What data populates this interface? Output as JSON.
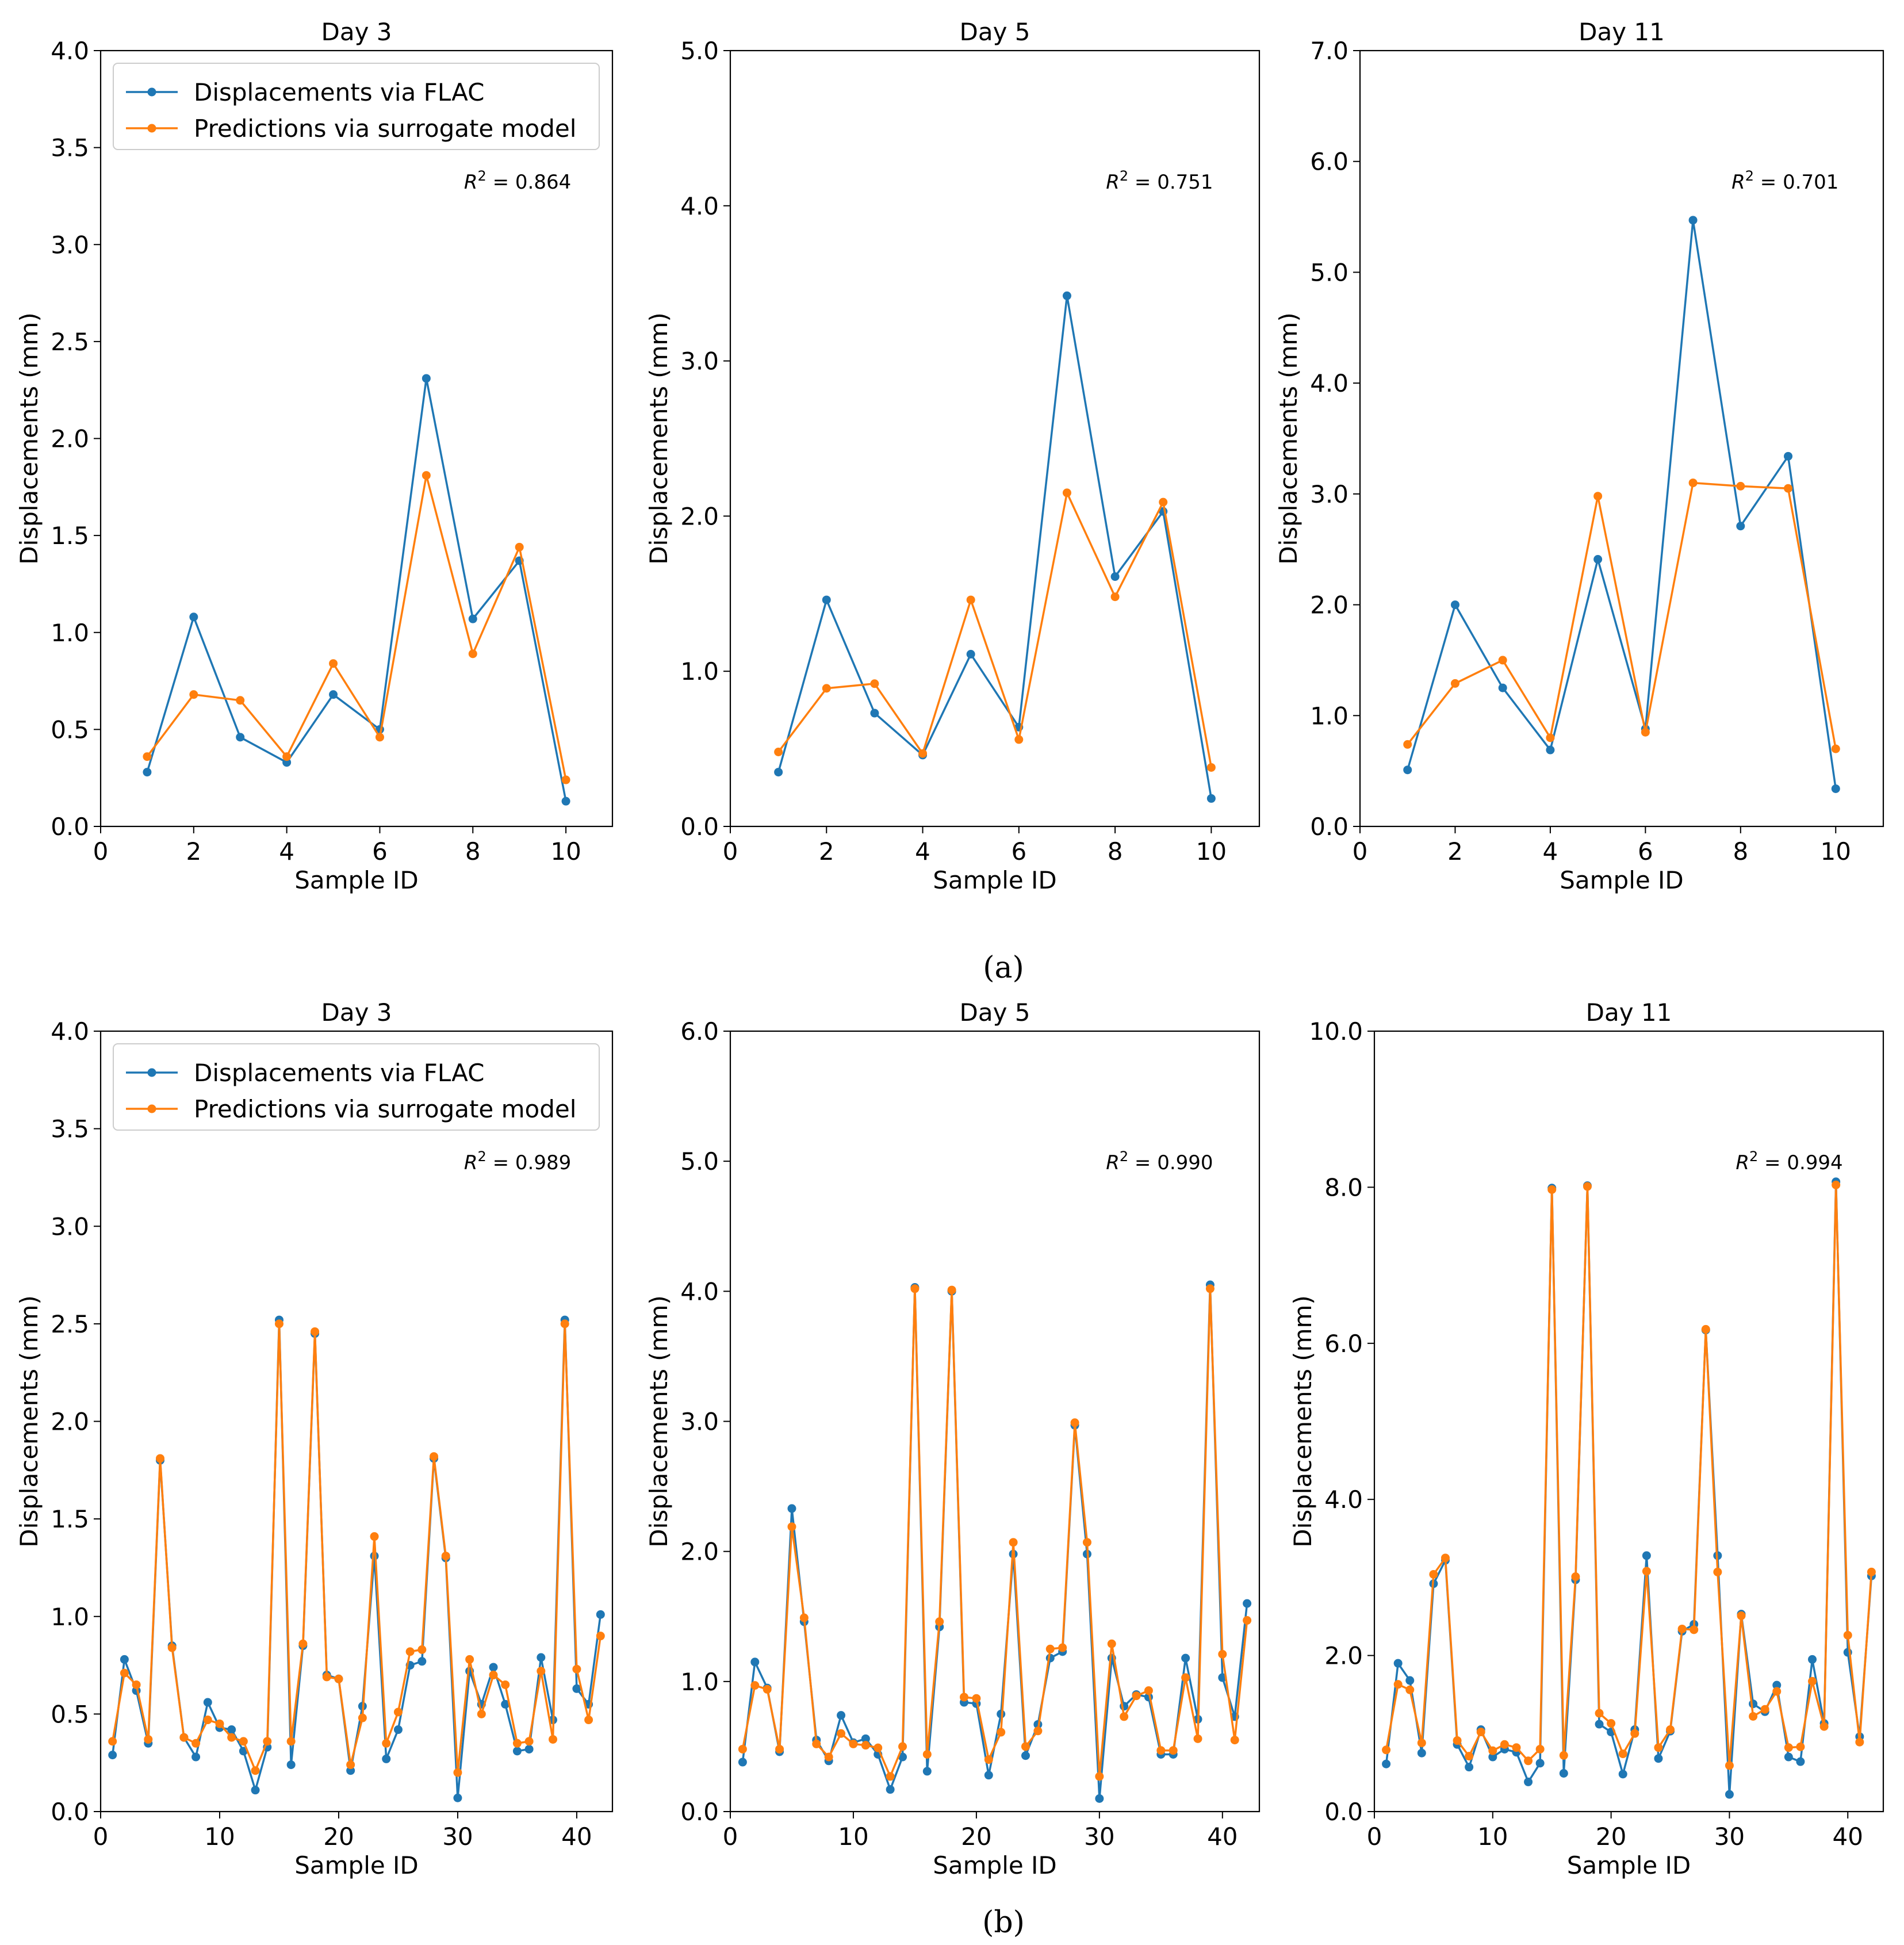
{
  "colors": {
    "flac": "#1f77b4",
    "surrogate": "#ff7f0e"
  },
  "legend": {
    "flac": "Displacements via FLAC",
    "surrogate": "Predictions via surrogate model"
  },
  "panel_labels": {
    "a": "(a)",
    "b": "(b)"
  },
  "chart_data": [
    {
      "type": "line",
      "panel": "a",
      "title": "Day 3",
      "xlabel": "Sample ID",
      "ylabel": "Displacements (mm)",
      "r2": "0.864",
      "xlim": [
        0,
        11
      ],
      "ylim": [
        0,
        4.0
      ],
      "xticks": [
        0,
        2,
        4,
        6,
        8,
        10
      ],
      "yticks": [
        0.0,
        0.5,
        1.0,
        1.5,
        2.0,
        2.5,
        3.0,
        3.5,
        4.0
      ],
      "ytick_decimals": 1,
      "legend": true,
      "x": [
        1,
        2,
        3,
        4,
        5,
        6,
        7,
        8,
        9,
        10
      ],
      "series": [
        {
          "name": "Displacements via FLAC",
          "key": "flac",
          "values": [
            0.28,
            1.08,
            0.46,
            0.33,
            0.68,
            0.5,
            2.31,
            1.07,
            1.37,
            0.13
          ]
        },
        {
          "name": "Predictions via surrogate model",
          "key": "surrogate",
          "values": [
            0.36,
            0.68,
            0.65,
            0.36,
            0.84,
            0.46,
            1.81,
            0.89,
            1.44,
            0.24
          ]
        }
      ]
    },
    {
      "type": "line",
      "panel": "a",
      "title": "Day 5",
      "xlabel": "Sample ID",
      "ylabel": "Displacements (mm)",
      "r2": "0.751",
      "xlim": [
        0,
        11
      ],
      "ylim": [
        0,
        5.0
      ],
      "xticks": [
        0,
        2,
        4,
        6,
        8,
        10
      ],
      "yticks": [
        0.0,
        1.0,
        2.0,
        3.0,
        4.0,
        5.0
      ],
      "ytick_decimals": 1,
      "legend": false,
      "x": [
        1,
        2,
        3,
        4,
        5,
        6,
        7,
        8,
        9,
        10
      ],
      "series": [
        {
          "name": "Displacements via FLAC",
          "key": "flac",
          "values": [
            0.35,
            1.46,
            0.73,
            0.46,
            1.11,
            0.64,
            3.42,
            1.61,
            2.03,
            0.18
          ]
        },
        {
          "name": "Predictions via surrogate model",
          "key": "surrogate",
          "values": [
            0.48,
            0.89,
            0.92,
            0.47,
            1.46,
            0.56,
            2.15,
            1.48,
            2.09,
            0.38
          ]
        }
      ]
    },
    {
      "type": "line",
      "panel": "a",
      "title": "Day 11",
      "xlabel": "Sample ID",
      "ylabel": "Displacements (mm)",
      "r2": "0.701",
      "xlim": [
        0,
        11
      ],
      "ylim": [
        0,
        7.0
      ],
      "xticks": [
        0,
        2,
        4,
        6,
        8,
        10
      ],
      "yticks": [
        0.0,
        1.0,
        2.0,
        3.0,
        4.0,
        5.0,
        6.0,
        7.0
      ],
      "ytick_decimals": 1,
      "legend": false,
      "x": [
        1,
        2,
        3,
        4,
        5,
        6,
        7,
        8,
        9,
        10
      ],
      "series": [
        {
          "name": "Displacements via FLAC",
          "key": "flac",
          "values": [
            0.51,
            2.0,
            1.25,
            0.69,
            2.41,
            0.88,
            5.47,
            2.71,
            3.34,
            0.34
          ]
        },
        {
          "name": "Predictions via surrogate model",
          "key": "surrogate",
          "values": [
            0.74,
            1.29,
            1.5,
            0.8,
            2.98,
            0.85,
            3.1,
            3.07,
            3.05,
            0.7
          ]
        }
      ]
    },
    {
      "type": "line",
      "panel": "b",
      "title": "Day 3",
      "xlabel": "Sample ID",
      "ylabel": "Displacements (mm)",
      "r2": "0.989",
      "xlim": [
        0,
        43
      ],
      "ylim": [
        0,
        4.0
      ],
      "xticks": [
        0,
        10,
        20,
        30,
        40
      ],
      "yticks": [
        0.0,
        0.5,
        1.0,
        1.5,
        2.0,
        2.5,
        3.0,
        3.5,
        4.0
      ],
      "ytick_decimals": 1,
      "legend": true,
      "x": [
        1,
        2,
        3,
        4,
        5,
        6,
        7,
        8,
        9,
        10,
        11,
        12,
        13,
        14,
        15,
        16,
        17,
        18,
        19,
        20,
        21,
        22,
        23,
        24,
        25,
        26,
        27,
        28,
        29,
        30,
        31,
        32,
        33,
        34,
        35,
        36,
        37,
        38,
        39,
        40,
        41,
        42
      ],
      "series": [
        {
          "name": "Displacements via FLAC",
          "key": "flac",
          "values": [
            0.29,
            0.78,
            0.62,
            0.35,
            1.8,
            0.85,
            0.38,
            0.28,
            0.56,
            0.43,
            0.42,
            0.31,
            0.11,
            0.33,
            2.52,
            0.24,
            0.85,
            2.45,
            0.7,
            0.68,
            0.21,
            0.54,
            1.31,
            0.27,
            0.42,
            0.75,
            0.77,
            1.81,
            1.3,
            0.07,
            0.72,
            0.55,
            0.74,
            0.55,
            0.31,
            0.32,
            0.79,
            0.47,
            2.52,
            0.63,
            0.55,
            1.01
          ]
        },
        {
          "name": "Predictions via surrogate model",
          "key": "surrogate",
          "values": [
            0.36,
            0.71,
            0.65,
            0.37,
            1.81,
            0.84,
            0.38,
            0.35,
            0.47,
            0.45,
            0.38,
            0.36,
            0.21,
            0.36,
            2.5,
            0.36,
            0.86,
            2.46,
            0.69,
            0.68,
            0.24,
            0.48,
            1.41,
            0.35,
            0.51,
            0.82,
            0.83,
            1.82,
            1.31,
            0.2,
            0.78,
            0.5,
            0.7,
            0.65,
            0.35,
            0.36,
            0.72,
            0.37,
            2.5,
            0.73,
            0.47,
            0.9
          ]
        }
      ]
    },
    {
      "type": "line",
      "panel": "b",
      "title": "Day 5",
      "xlabel": "Sample ID",
      "ylabel": "Displacements (mm)",
      "r2": "0.990",
      "xlim": [
        0,
        43
      ],
      "ylim": [
        0,
        6.0
      ],
      "xticks": [
        0,
        10,
        20,
        30,
        40
      ],
      "yticks": [
        0.0,
        1.0,
        2.0,
        3.0,
        4.0,
        5.0,
        6.0
      ],
      "ytick_decimals": 1,
      "legend": false,
      "x": [
        1,
        2,
        3,
        4,
        5,
        6,
        7,
        8,
        9,
        10,
        11,
        12,
        13,
        14,
        15,
        16,
        17,
        18,
        19,
        20,
        21,
        22,
        23,
        24,
        25,
        26,
        27,
        28,
        29,
        30,
        31,
        32,
        33,
        34,
        35,
        36,
        37,
        38,
        39,
        40,
        41,
        42
      ],
      "series": [
        {
          "name": "Displacements via FLAC",
          "key": "flac",
          "values": [
            0.38,
            1.15,
            0.95,
            0.46,
            2.33,
            1.46,
            0.55,
            0.39,
            0.74,
            0.53,
            0.56,
            0.44,
            0.17,
            0.42,
            4.03,
            0.31,
            1.42,
            4.0,
            0.84,
            0.83,
            0.28,
            0.75,
            1.98,
            0.43,
            0.67,
            1.18,
            1.23,
            2.97,
            1.98,
            0.1,
            1.18,
            0.81,
            0.9,
            0.88,
            0.44,
            0.44,
            1.18,
            0.71,
            4.05,
            1.03,
            0.73,
            1.6
          ]
        },
        {
          "name": "Predictions via surrogate model",
          "key": "surrogate",
          "values": [
            0.48,
            0.97,
            0.94,
            0.48,
            2.19,
            1.49,
            0.52,
            0.42,
            0.6,
            0.52,
            0.51,
            0.49,
            0.27,
            0.5,
            4.02,
            0.44,
            1.46,
            4.01,
            0.88,
            0.87,
            0.4,
            0.61,
            2.07,
            0.5,
            0.62,
            1.25,
            1.26,
            2.99,
            2.07,
            0.27,
            1.29,
            0.73,
            0.89,
            0.93,
            0.47,
            0.47,
            1.03,
            0.56,
            4.02,
            1.21,
            0.55,
            1.47
          ]
        }
      ]
    },
    {
      "type": "line",
      "panel": "b",
      "title": "Day 11",
      "xlabel": "Sample ID",
      "ylabel": "Displacements (mm)",
      "r2": "0.994",
      "xlim": [
        0,
        43
      ],
      "ylim": [
        0,
        10.0
      ],
      "xticks": [
        0,
        10,
        20,
        30,
        40
      ],
      "yticks": [
        0.0,
        2.0,
        4.0,
        6.0,
        8.0,
        10.0
      ],
      "ytick_decimals": 1,
      "legend": false,
      "x": [
        1,
        2,
        3,
        4,
        5,
        6,
        7,
        8,
        9,
        10,
        11,
        12,
        13,
        14,
        15,
        16,
        17,
        18,
        19,
        20,
        21,
        22,
        23,
        24,
        25,
        26,
        27,
        28,
        29,
        30,
        31,
        32,
        33,
        34,
        35,
        36,
        37,
        38,
        39,
        40,
        41,
        42
      ],
      "series": [
        {
          "name": "Displacements via FLAC",
          "key": "flac",
          "values": [
            0.61,
            1.9,
            1.68,
            0.75,
            2.92,
            3.22,
            0.86,
            0.57,
            1.05,
            0.7,
            0.8,
            0.76,
            0.38,
            0.62,
            7.99,
            0.49,
            2.97,
            8.02,
            1.12,
            1.02,
            0.48,
            1.05,
            3.28,
            0.68,
            1.03,
            2.31,
            2.4,
            6.17,
            3.28,
            0.22,
            2.53,
            1.38,
            1.28,
            1.62,
            0.7,
            0.64,
            1.95,
            1.13,
            8.07,
            2.04,
            0.96,
            3.02
          ]
        },
        {
          "name": "Predictions via surrogate model",
          "key": "surrogate",
          "values": [
            0.79,
            1.63,
            1.56,
            0.88,
            3.04,
            3.25,
            0.91,
            0.71,
            1.02,
            0.78,
            0.86,
            0.82,
            0.65,
            0.8,
            7.97,
            0.72,
            3.01,
            8.01,
            1.26,
            1.13,
            0.74,
            1.0,
            3.08,
            0.82,
            1.05,
            2.34,
            2.33,
            6.18,
            3.07,
            0.59,
            2.51,
            1.22,
            1.31,
            1.54,
            0.82,
            0.83,
            1.67,
            1.09,
            8.03,
            2.26,
            0.89,
            3.07
          ]
        }
      ]
    }
  ]
}
